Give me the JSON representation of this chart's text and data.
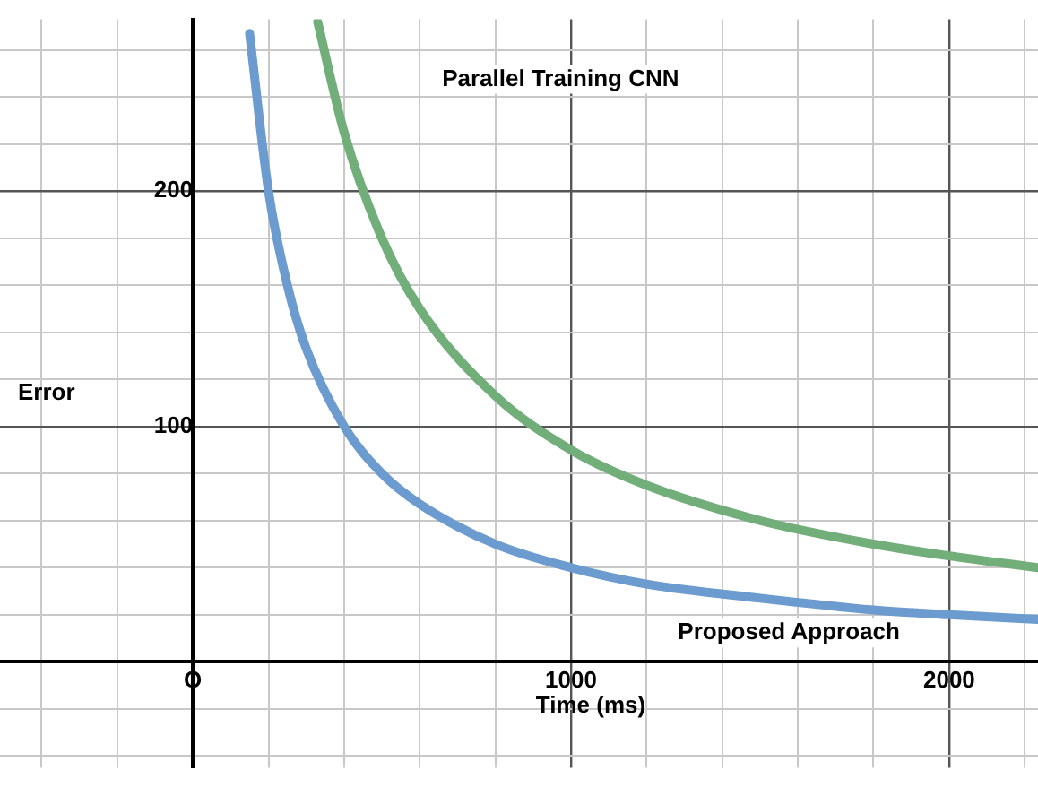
{
  "chart_data": {
    "type": "line",
    "xlabel": "Time (ms)",
    "ylabel": "Error",
    "xlim": [
      -510,
      2235
    ],
    "ylim": [
      -45,
      273
    ],
    "xticks": [
      {
        "value": -400,
        "label": null
      },
      {
        "value": -200,
        "label": null
      },
      {
        "value": 0,
        "label": "O"
      },
      {
        "value": 200,
        "label": null
      },
      {
        "value": 400,
        "label": null
      },
      {
        "value": 600,
        "label": null
      },
      {
        "value": 800,
        "label": null
      },
      1000,
      {
        "value": 1200,
        "label": null
      },
      {
        "value": 1400,
        "label": null
      },
      {
        "value": 1600,
        "label": null
      },
      {
        "value": 1800,
        "label": null
      },
      2000,
      {
        "value": 2200,
        "label": null
      }
    ],
    "yticks": [
      {
        "value": -40,
        "label": null
      },
      {
        "value": -20,
        "label": null
      },
      {
        "value": 20,
        "label": null
      },
      {
        "value": 40,
        "label": null
      },
      {
        "value": 60,
        "label": null
      },
      {
        "value": 80,
        "label": null
      },
      100,
      {
        "value": 120,
        "label": null
      },
      {
        "value": 140,
        "label": null
      },
      {
        "value": 160,
        "label": null
      },
      {
        "value": 180,
        "label": null
      },
      200,
      {
        "value": 220,
        "label": null
      },
      {
        "value": 240,
        "label": null
      },
      {
        "value": 260,
        "label": null
      }
    ],
    "grid": true,
    "marker": "none",
    "line_style": "solid",
    "series": [
      {
        "color": "#6b9bcf",
        "x": [
          150,
          200,
          250,
          300,
          400,
          500,
          600,
          800,
          1000,
          1200,
          1500,
          1800,
          2000,
          2235
        ],
        "values": [
          267,
          200,
          160,
          133,
          100,
          80,
          67,
          50,
          40,
          33,
          27,
          22,
          20,
          18
        ]
      },
      {
        "color": "#72ae7a",
        "x": [
          330,
          400,
          500,
          600,
          800,
          1000,
          1200,
          1500,
          1800,
          2000,
          2235
        ],
        "values": [
          272,
          225,
          180,
          150,
          113,
          90,
          75,
          60,
          50,
          45,
          40
        ]
      }
    ],
    "annotations": [
      "Parallel Training CNN",
      "Proposed Approach"
    ]
  }
}
